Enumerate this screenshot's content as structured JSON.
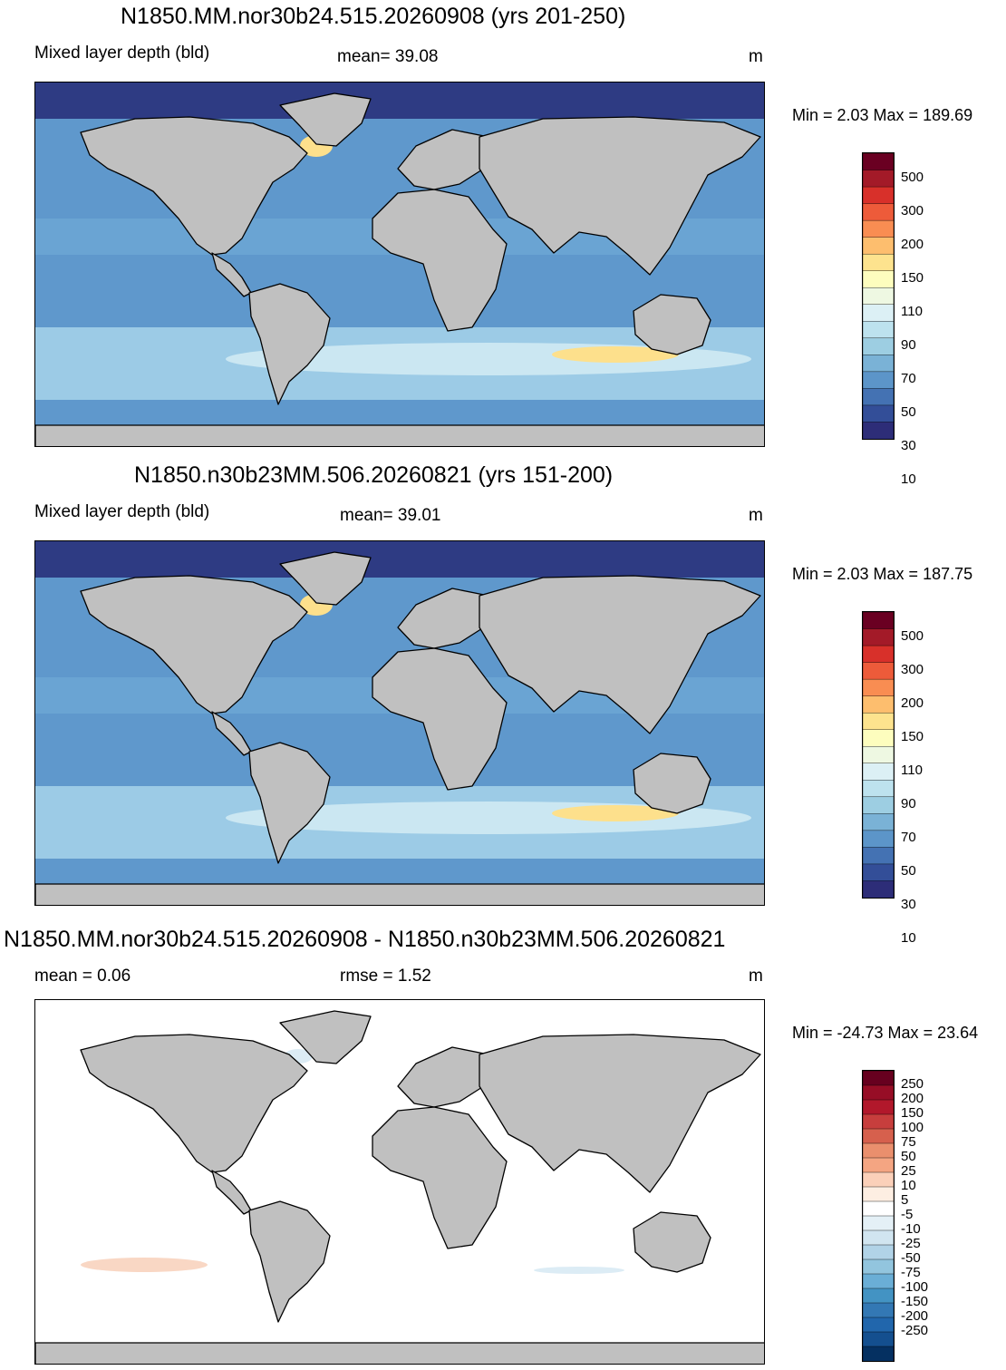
{
  "panels": [
    {
      "title": "N1850.MM.nor30b24.515.20260908 (yrs 201-250)",
      "left_label": "Mixed layer depth (bld)",
      "center_label": "mean=  39.08",
      "units": "m",
      "minmax": "Min =    2.03 Max = 189.69",
      "colorbar": {
        "colors": [
          "#6a0022",
          "#a31a28",
          "#d8302a",
          "#ed5b3a",
          "#f98d52",
          "#fdbe6e",
          "#fde38e",
          "#fdfdbe",
          "#eef8e2",
          "#dcf0f5",
          "#bde2ee",
          "#9dcee2",
          "#7ab2d6",
          "#5c95c9",
          "#4472b3",
          "#334e98",
          "#2d2d78"
        ],
        "labels": [
          "500",
          "300",
          "200",
          "150",
          "110",
          "90",
          "70",
          "50",
          "30",
          "10"
        ]
      },
      "map": {
        "ocean_base": "#5f98cc",
        "land": "#c0c0c0",
        "polar": "#2e3b83",
        "highlights": "#fde08c"
      }
    },
    {
      "title": "N1850.n30b23MM.506.20260821 (yrs 151-200)",
      "left_label": "Mixed layer depth (bld)",
      "center_label": "mean=  39.01",
      "units": "m",
      "minmax": "Min =    2.03 Max = 187.75",
      "colorbar": {
        "colors": [
          "#6a0022",
          "#a31a28",
          "#d8302a",
          "#ed5b3a",
          "#f98d52",
          "#fdbe6e",
          "#fde38e",
          "#fdfdbe",
          "#eef8e2",
          "#dcf0f5",
          "#bde2ee",
          "#9dcee2",
          "#7ab2d6",
          "#5c95c9",
          "#4472b3",
          "#334e98",
          "#2d2d78"
        ],
        "labels": [
          "500",
          "300",
          "200",
          "150",
          "110",
          "90",
          "70",
          "50",
          "30",
          "10"
        ]
      },
      "map": {
        "ocean_base": "#5f98cc",
        "land": "#c0c0c0",
        "polar": "#2e3b83",
        "highlights": "#fde08c"
      }
    },
    {
      "title": "N1850.MM.nor30b24.515.20260908 - N1850.n30b23MM.506.20260821",
      "left_label": "mean =   0.06",
      "center_label": "rmse =   1.52",
      "units": "m",
      "minmax": "Min = -24.73 Max =  23.64",
      "colorbar": {
        "colors": [
          "#67001f",
          "#970d26",
          "#b2182b",
          "#c73e3d",
          "#d6604d",
          "#ea8f6d",
          "#f4a582",
          "#fbd0b9",
          "#fdeee2",
          "#ffffff",
          "#e4f0f6",
          "#d1e5f0",
          "#b1d3e7",
          "#92c5de",
          "#6aaed6",
          "#4393c3",
          "#3378b4",
          "#2166ac",
          "#144f8f",
          "#053061"
        ],
        "labels": [
          "250",
          "200",
          "150",
          "100",
          "75",
          "50",
          "25",
          "10",
          "5",
          "-5",
          "-10",
          "-25",
          "-50",
          "-75",
          "-100",
          "-150",
          "-200",
          "-250"
        ]
      },
      "map": {
        "ocean_base": "#ffffff",
        "land": "#c0c0c0",
        "polar": "#bdbdbd",
        "highlights": "#f9d7c4"
      }
    }
  ]
}
